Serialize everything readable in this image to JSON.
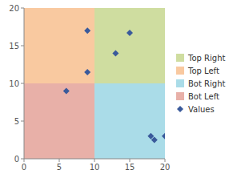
{
  "chart_data": {
    "type": "scatter",
    "x": [
      6,
      9,
      9,
      13,
      15,
      18,
      18.5,
      20
    ],
    "series": [
      {
        "name": "Values",
        "color": "#3A5A9B",
        "marker": "diamond",
        "values": [
          9,
          11.5,
          17,
          14,
          16.7,
          3,
          2.5,
          3
        ]
      }
    ],
    "midpoint_x": 10,
    "midpoint_y": 10,
    "quadrants": [
      {
        "name": "Top Right",
        "color": "#CFDDA0",
        "position": "top-right"
      },
      {
        "name": "Top Left",
        "color": "#F9C9A0",
        "position": "top-left"
      },
      {
        "name": "Bot Right",
        "color": "#AADCE8",
        "position": "bottom-right"
      },
      {
        "name": "Bot Left",
        "color": "#E8B0A8",
        "position": "bottom-left"
      }
    ],
    "xlim": [
      0,
      20
    ],
    "ylim": [
      0,
      20
    ],
    "xticks": [
      0,
      5,
      10,
      15,
      20
    ],
    "yticks": [
      0,
      5,
      10,
      15,
      20
    ],
    "grid": false,
    "legend": "right"
  }
}
